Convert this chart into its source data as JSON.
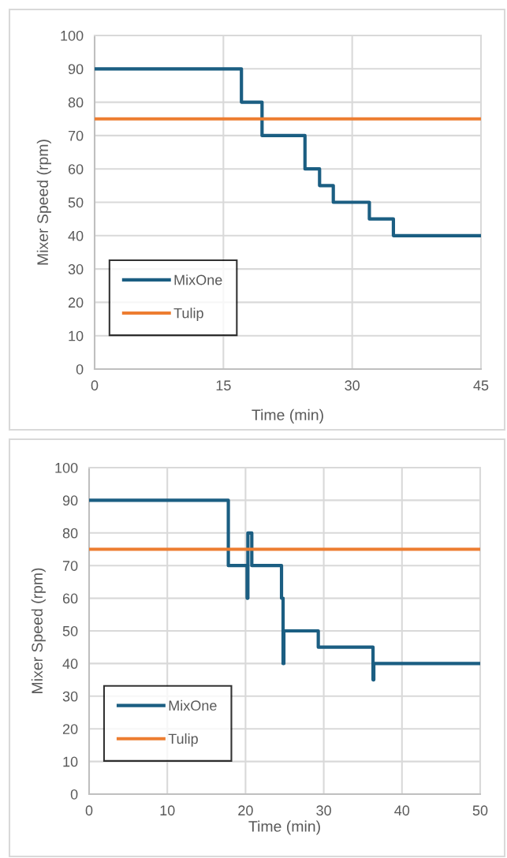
{
  "chart_data": [
    {
      "type": "step",
      "xlabel": "Time (min)",
      "ylabel": "Mixer Speed (rpm)",
      "xlim": [
        0,
        45
      ],
      "xticks": [
        0,
        15,
        30,
        45
      ],
      "ylim": [
        0,
        100
      ],
      "yticks": [
        0,
        10,
        20,
        30,
        40,
        50,
        60,
        70,
        80,
        90,
        100
      ],
      "grid": true,
      "legend": "bottom left",
      "series": [
        {
          "name": "MixOne",
          "color": "#1b5e82",
          "x": [
            0,
            17.1,
            19.5,
            24.5,
            26.2,
            27.8,
            32.0,
            34.8,
            45
          ],
          "values": [
            90,
            80,
            70,
            60,
            55,
            50,
            45,
            40,
            40
          ]
        },
        {
          "name": "Tulip",
          "type": "line",
          "color": "#ed7d31",
          "x": [
            0,
            45
          ],
          "values": [
            75,
            75
          ]
        }
      ]
    },
    {
      "type": "step",
      "xlabel": "Time (min)",
      "ylabel": "Mixer Speed (rpm)",
      "xlim": [
        0,
        50
      ],
      "xticks": [
        0,
        10,
        20,
        30,
        40,
        50
      ],
      "ylim": [
        0,
        100
      ],
      "yticks": [
        0,
        10,
        20,
        30,
        40,
        50,
        60,
        70,
        80,
        90,
        100
      ],
      "grid": true,
      "legend": "bottom left",
      "series": [
        {
          "name": "MixOne",
          "color": "#1b5e82",
          "x": [
            0,
            17.8,
            20.2,
            20.3,
            20.8,
            24.6,
            24.8,
            24.9,
            29.3,
            36.3,
            36.4,
            50
          ],
          "values": [
            90,
            70,
            60,
            80,
            70,
            60,
            40,
            50,
            45,
            35,
            40,
            40
          ]
        },
        {
          "name": "Tulip",
          "type": "line",
          "color": "#ed7d31",
          "x": [
            0,
            50
          ],
          "values": [
            75,
            75
          ]
        }
      ]
    }
  ]
}
